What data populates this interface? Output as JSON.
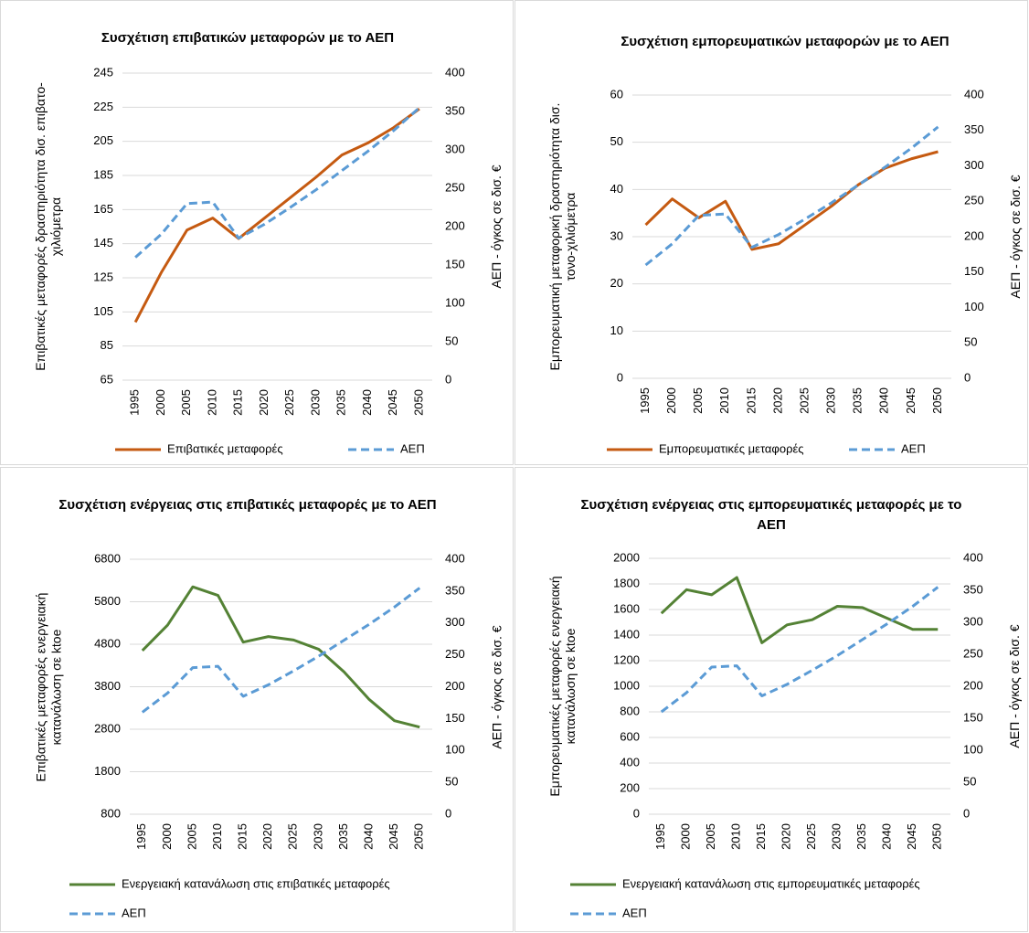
{
  "chart_data": [
    {
      "type": "line",
      "title": "Συσχέτιση επιβατικών μεταφορών με το ΑΕΠ",
      "ylabel": "Επιβατικές μεταφορές δραστηριότητα δισ. επιβατο-χιλιόμετρα",
      "y2label": "ΑΕΠ - όγκος σε δισ. €",
      "categories": [
        "1995",
        "2000",
        "2005",
        "2010",
        "2015",
        "2020",
        "2025",
        "2030",
        "2035",
        "2040",
        "2045",
        "2050"
      ],
      "ylim": [
        65,
        245
      ],
      "yticks": [
        65,
        85,
        105,
        125,
        145,
        165,
        185,
        205,
        225,
        245
      ],
      "y2lim": [
        0,
        400
      ],
      "y2ticks": [
        0,
        50,
        100,
        150,
        200,
        250,
        300,
        350,
        400
      ],
      "series": [
        {
          "name": "Επιβατικές μεταφορές",
          "color": "#c55a11",
          "values": [
            99,
            128,
            153,
            160,
            148,
            160,
            172,
            184,
            197,
            204,
            213,
            224
          ]
        },
        {
          "name": "ΑΕΠ",
          "color": "#5b9bd5",
          "axis": "y2",
          "dashed": true,
          "values": [
            160,
            190,
            230,
            232,
            185,
            203,
            225,
            248,
            273,
            298,
            325,
            355
          ]
        }
      ]
    },
    {
      "type": "line",
      "title": "Συσχέτιση εμπορευματικών μεταφορών με το ΑΕΠ",
      "ylabel": "Εμπορευματική μεταφορική δραστηριότητα δισ. τονο-χιλιόμετρα",
      "y2label": "ΑΕΠ - όγκος σε δισ. €",
      "categories": [
        "1995",
        "2000",
        "2005",
        "2010",
        "2015",
        "2020",
        "2025",
        "2030",
        "2035",
        "2040",
        "2045",
        "2050"
      ],
      "ylim": [
        0,
        60
      ],
      "yticks": [
        0,
        10,
        20,
        30,
        40,
        50,
        60
      ],
      "y2lim": [
        0,
        400
      ],
      "y2ticks": [
        0,
        50,
        100,
        150,
        200,
        250,
        300,
        350,
        400
      ],
      "series": [
        {
          "name": "Εμπορευματικές μεταφορές",
          "color": "#c55a11",
          "values": [
            32.5,
            38,
            34,
            37.5,
            27.3,
            28.5,
            32.5,
            36.5,
            41,
            44.5,
            46.5,
            48
          ]
        },
        {
          "name": "ΑΕΠ",
          "color": "#5b9bd5",
          "axis": "y2",
          "dashed": true,
          "values": [
            160,
            190,
            230,
            232,
            185,
            203,
            225,
            248,
            273,
            298,
            325,
            355
          ]
        }
      ]
    },
    {
      "type": "line",
      "title": "Συσχέτιση ενέργειας στις επιβατικές μεταφορές με το ΑΕΠ",
      "ylabel": "Επιβατικές μεταφορές ενεργειακή κατανάλωση σε ktoe",
      "y2label": "ΑΕΠ - όγκος σε δισ. €",
      "categories": [
        "1995",
        "2000",
        "2005",
        "2010",
        "2015",
        "2020",
        "2025",
        "2030",
        "2035",
        "2040",
        "2045",
        "2050"
      ],
      "ylim": [
        800,
        6800
      ],
      "yticks": [
        800,
        1800,
        2800,
        3800,
        4800,
        5800,
        6800
      ],
      "y2lim": [
        0,
        400
      ],
      "y2ticks": [
        0,
        50,
        100,
        150,
        200,
        250,
        300,
        350,
        400
      ],
      "series": [
        {
          "name": "Ενεργειακή κατανάλωση στις επιβατικές μεταφορές",
          "color": "#548235",
          "values": [
            4650,
            5250,
            6150,
            5950,
            4850,
            4980,
            4900,
            4680,
            4150,
            3500,
            3000,
            2850
          ]
        },
        {
          "name": "ΑΕΠ",
          "color": "#5b9bd5",
          "axis": "y2",
          "dashed": true,
          "values": [
            160,
            190,
            230,
            232,
            185,
            203,
            225,
            248,
            273,
            298,
            325,
            355
          ]
        }
      ]
    },
    {
      "type": "line",
      "title": "Συσχέτιση ενέργειας στις εμπορευματικές μεταφορές με το ΑΕΠ",
      "ylabel": "Εμπορευματικές μεταφορές ενεργειακή κατανάλωση σε ktoe",
      "y2label": "ΑΕΠ - όγκος σε δισ. €",
      "categories": [
        "1995",
        "2000",
        "2005",
        "2010",
        "2015",
        "2020",
        "2025",
        "2030",
        "2035",
        "2040",
        "2045",
        "2050"
      ],
      "ylim": [
        0,
        2000
      ],
      "yticks": [
        0,
        200,
        400,
        600,
        800,
        1000,
        1200,
        1400,
        1600,
        1800,
        2000
      ],
      "y2lim": [
        0,
        400
      ],
      "y2ticks": [
        0,
        50,
        100,
        150,
        200,
        250,
        300,
        350,
        400
      ],
      "series": [
        {
          "name": "Ενεργειακή κατανάλωση στις εμπορευματικές μεταφορές",
          "color": "#548235",
          "values": [
            1570,
            1755,
            1715,
            1850,
            1340,
            1480,
            1520,
            1625,
            1615,
            1530,
            1445,
            1445
          ]
        },
        {
          "name": "ΑΕΠ",
          "color": "#5b9bd5",
          "axis": "y2",
          "dashed": true,
          "values": [
            160,
            190,
            230,
            232,
            185,
            203,
            225,
            248,
            273,
            298,
            325,
            355
          ]
        }
      ]
    }
  ]
}
